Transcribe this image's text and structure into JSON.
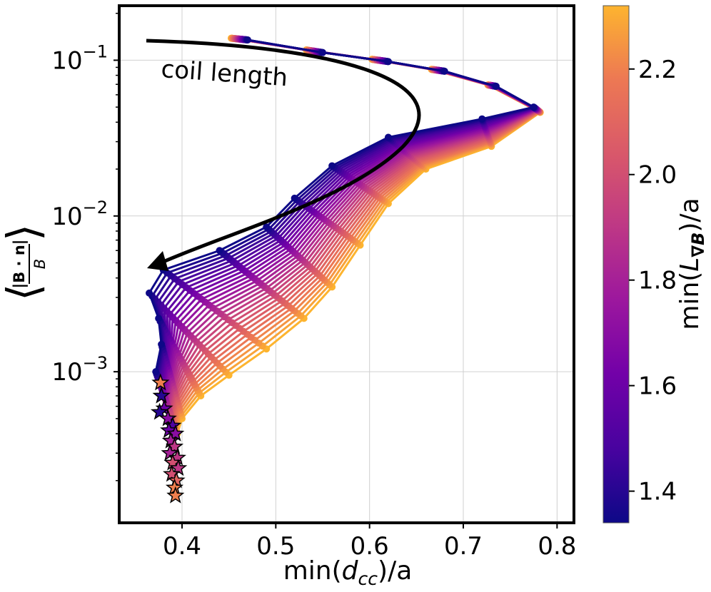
{
  "chart_data": {
    "type": "line",
    "subtitle": "coil length",
    "annotation_text": "coil length",
    "xlabel": "min(d_cc)/a",
    "xlabel_parts": {
      "prefix": "min(",
      "var": "d",
      "sub": "cc",
      "suffix": ")/a"
    },
    "ylabel": "⟨|B·n|/B⟩",
    "ylabel_parts": {
      "numerator": "|B · n|",
      "denominator": "B"
    },
    "xlim": [
      0.333,
      0.818
    ],
    "ylim_log10": [
      -3.97,
      -0.65
    ],
    "yscale": "log",
    "grid": true,
    "xticks": [
      {
        "v": 0.4,
        "label": "0.4"
      },
      {
        "v": 0.5,
        "label": "0.5"
      },
      {
        "v": 0.6,
        "label": "0.6"
      },
      {
        "v": 0.7,
        "label": "0.7"
      },
      {
        "v": 0.8,
        "label": "0.8"
      }
    ],
    "yticks": [
      {
        "e": -1,
        "base": "10",
        "exp": "−1"
      },
      {
        "e": -2,
        "base": "10",
        "exp": "−2"
      },
      {
        "e": -3,
        "base": "10",
        "exp": "−3"
      }
    ],
    "colorbar": {
      "label": "min(L_∇B)/a",
      "label_parts": {
        "prefix": "min(",
        "var": "L",
        "sub": "∇B",
        "suffix": ")/a"
      },
      "range": [
        1.34,
        2.32
      ],
      "colormap": "plasma",
      "ticks": [
        {
          "v": 1.4,
          "label": "1.4"
        },
        {
          "v": 1.6,
          "label": "1.6"
        },
        {
          "v": 1.8,
          "label": "1.8"
        },
        {
          "v": 2.0,
          "label": "2.0"
        },
        {
          "v": 2.2,
          "label": "2.2"
        }
      ]
    },
    "series_count": 28,
    "series_lmin": [
      1.34,
      2.32
    ],
    "top_path": [
      [
        0.47,
        0.135
      ],
      [
        0.55,
        0.112
      ],
      [
        0.62,
        0.098
      ],
      [
        0.68,
        0.085
      ],
      [
        0.735,
        0.068
      ],
      [
        0.775,
        0.05
      ],
      [
        0.72,
        0.042
      ],
      [
        0.62,
        0.032
      ],
      [
        0.56,
        0.021
      ],
      [
        0.52,
        0.013
      ],
      [
        0.49,
        0.0085
      ],
      [
        0.44,
        0.006
      ],
      [
        0.38,
        0.0045
      ],
      [
        0.365,
        0.0032
      ],
      [
        0.375,
        0.0022
      ],
      [
        0.378,
        0.0015
      ],
      [
        0.372,
        0.001
      ]
    ],
    "bottom_path": [
      [
        0.42,
        0.145
      ],
      [
        0.5,
        0.125
      ],
      [
        0.57,
        0.108
      ],
      [
        0.64,
        0.092
      ],
      [
        0.71,
        0.072
      ],
      [
        0.795,
        0.04
      ],
      [
        0.73,
        0.028
      ],
      [
        0.66,
        0.02
      ],
      [
        0.62,
        0.012
      ],
      [
        0.59,
        0.0065
      ],
      [
        0.56,
        0.0035
      ],
      [
        0.53,
        0.0022
      ],
      [
        0.49,
        0.0014
      ],
      [
        0.45,
        0.00095
      ],
      [
        0.42,
        0.0007
      ],
      [
        0.4,
        0.0005
      ],
      [
        0.395,
        0.0004
      ]
    ],
    "star_markers": [
      {
        "x": 0.377,
        "y": 0.00085,
        "l": 2.2
      },
      {
        "x": 0.378,
        "y": 0.0007,
        "l": 1.4
      },
      {
        "x": 0.381,
        "y": 0.00058,
        "l": 1.6
      },
      {
        "x": 0.376,
        "y": 0.00055,
        "l": 1.4
      },
      {
        "x": 0.385,
        "y": 0.0005,
        "l": 1.7
      },
      {
        "x": 0.39,
        "y": 0.00045,
        "l": 1.5
      },
      {
        "x": 0.386,
        "y": 0.00042,
        "l": 1.6
      },
      {
        "x": 0.393,
        "y": 0.0004,
        "l": 1.7
      },
      {
        "x": 0.388,
        "y": 0.00036,
        "l": 1.8
      },
      {
        "x": 0.392,
        "y": 0.00033,
        "l": 1.9
      },
      {
        "x": 0.387,
        "y": 0.0003,
        "l": 1.8
      },
      {
        "x": 0.395,
        "y": 0.00028,
        "l": 1.9
      },
      {
        "x": 0.39,
        "y": 0.00026,
        "l": 2.0
      },
      {
        "x": 0.396,
        "y": 0.00024,
        "l": 1.9
      },
      {
        "x": 0.389,
        "y": 0.00022,
        "l": 2.0
      },
      {
        "x": 0.394,
        "y": 0.0002,
        "l": 2.1
      },
      {
        "x": 0.392,
        "y": 0.00018,
        "l": 2.2
      },
      {
        "x": 0.393,
        "y": 0.00016,
        "l": 2.2
      }
    ]
  }
}
